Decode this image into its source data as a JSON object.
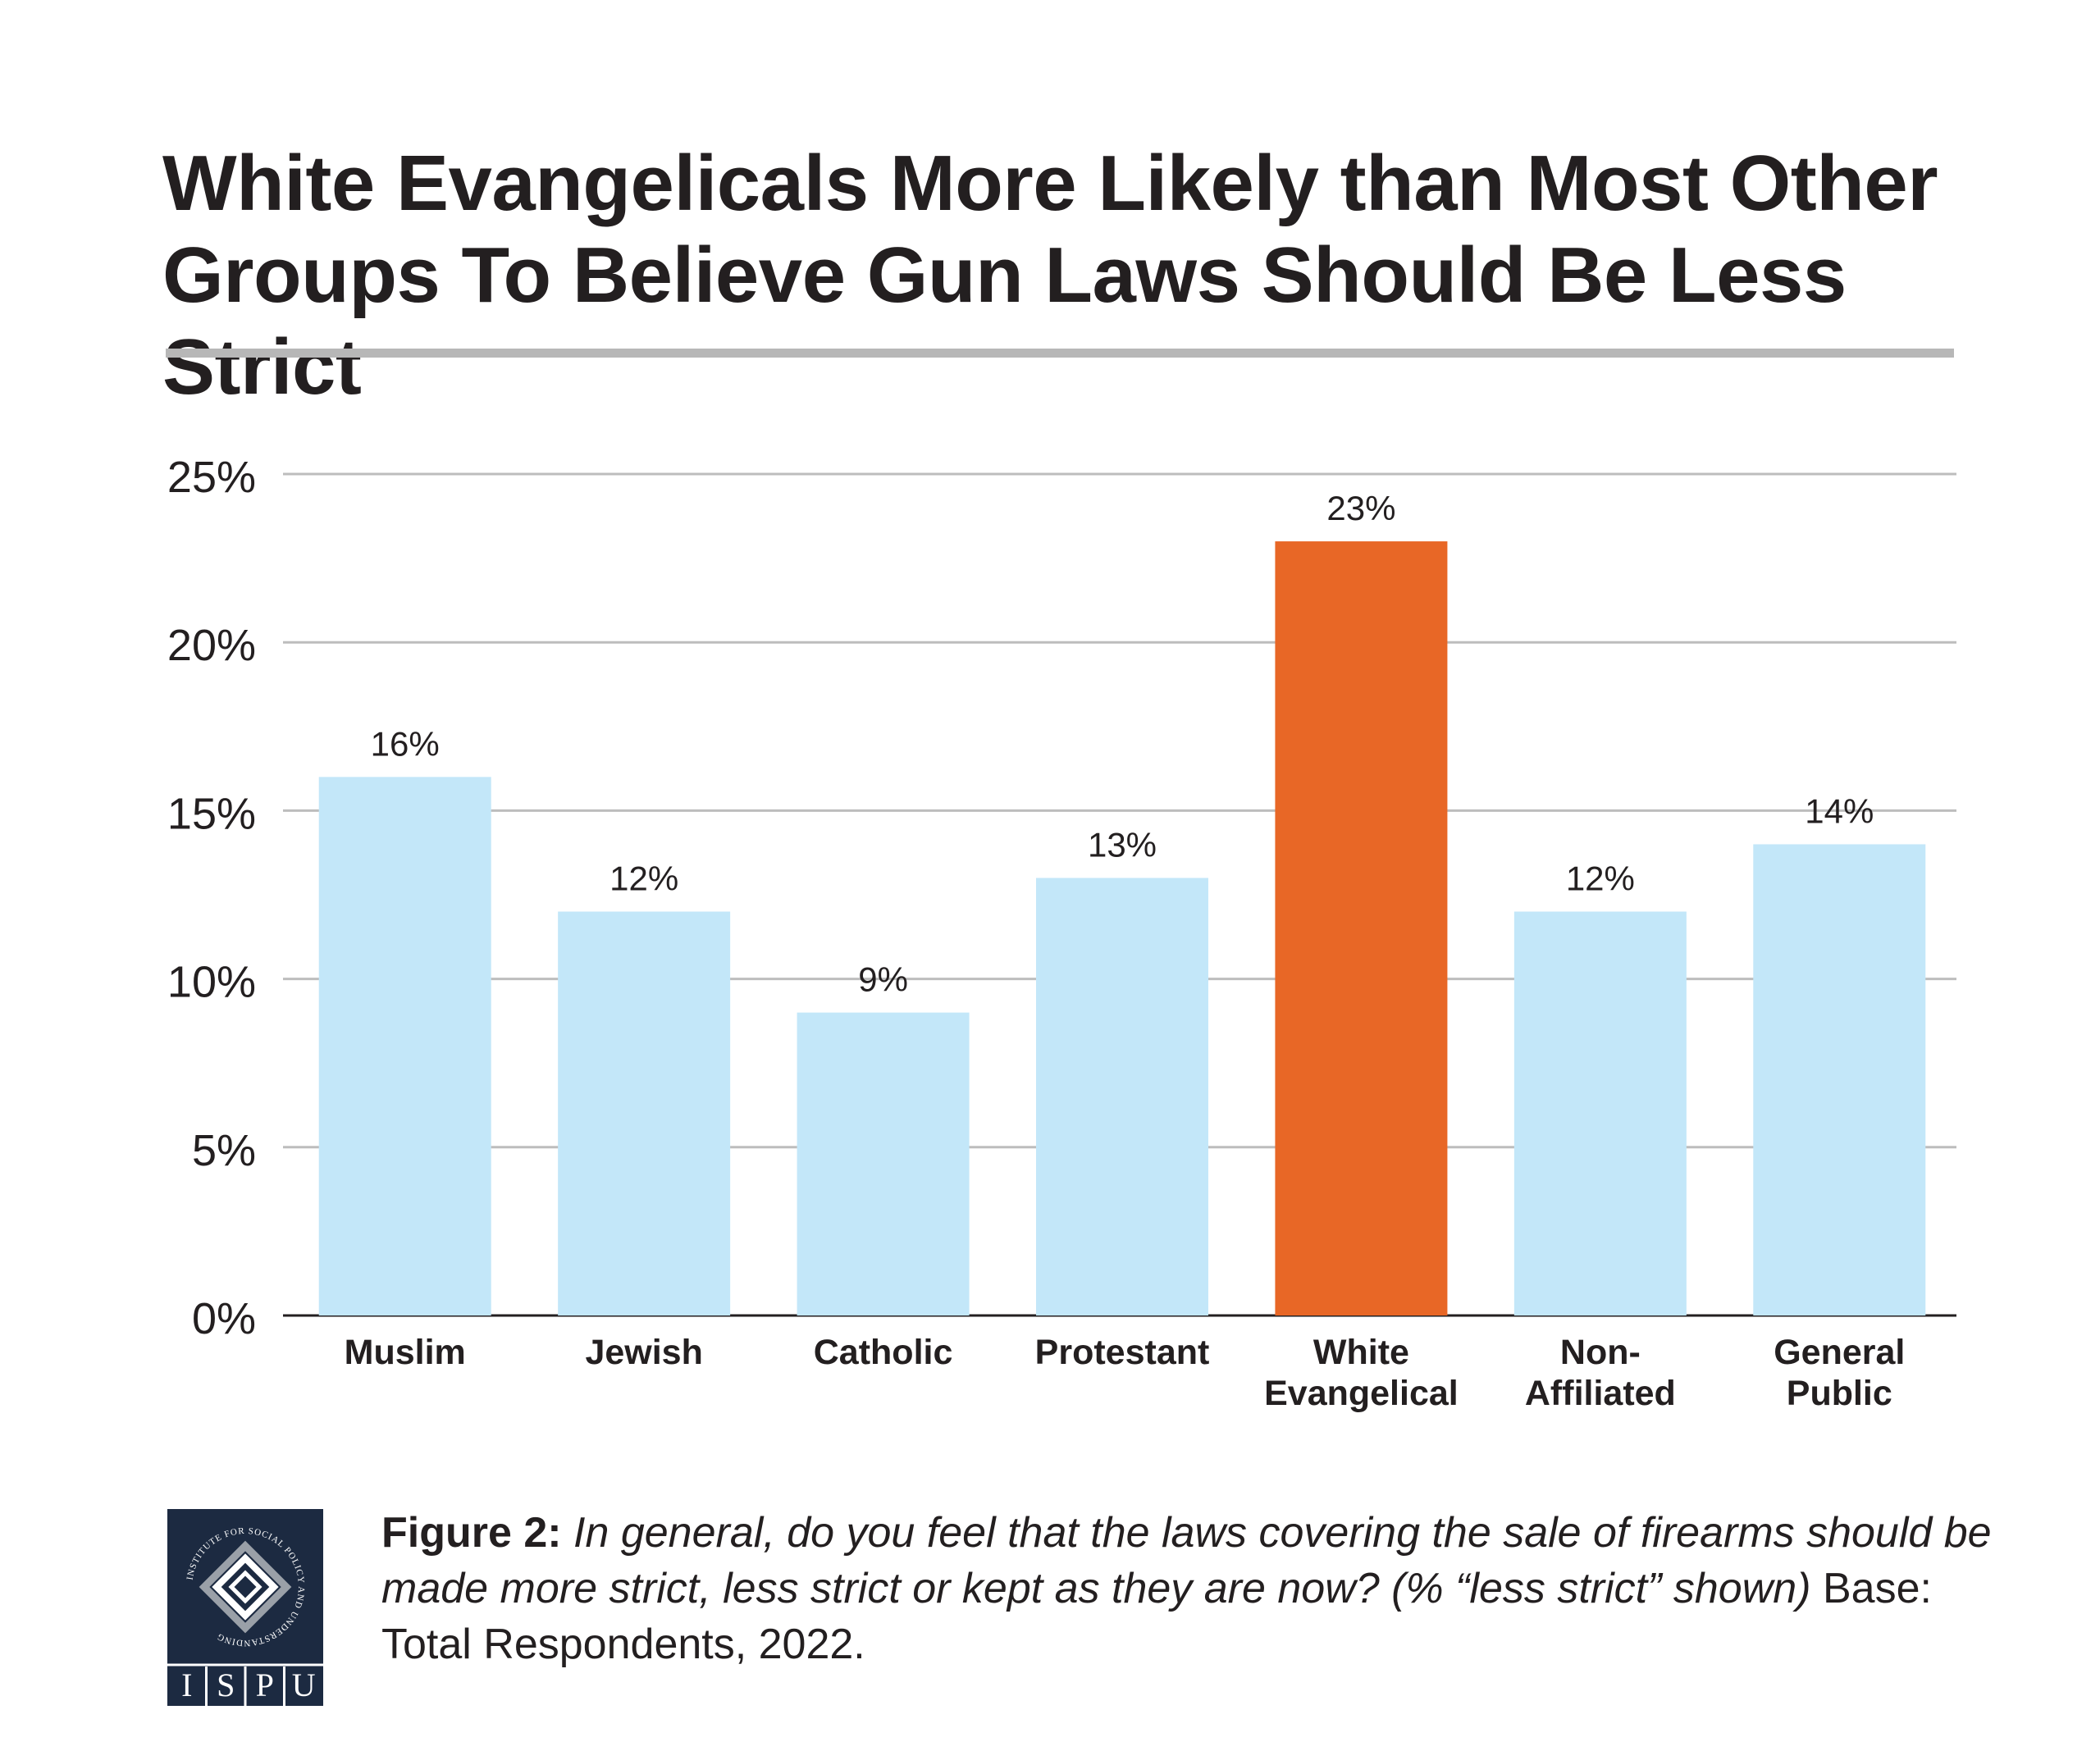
{
  "chart_data": {
    "type": "bar",
    "title_lines": [
      "White Evangelicals More Likely than Most Other",
      "Groups To Believe Gun Laws Should Be Less Strict"
    ],
    "categories": [
      [
        "Muslim"
      ],
      [
        "Jewish"
      ],
      [
        "Catholic"
      ],
      [
        "Protestant"
      ],
      [
        "White",
        "Evangelical"
      ],
      [
        "Non-",
        "Affiliated"
      ],
      [
        "General",
        "Public"
      ]
    ],
    "values": [
      16,
      12,
      9,
      13,
      23,
      12,
      14
    ],
    "data_labels": [
      "16%",
      "12%",
      "9%",
      "13%",
      "23%",
      "12%",
      "14%"
    ],
    "ylim": [
      0,
      25
    ],
    "yticks": [
      0,
      5,
      10,
      15,
      20,
      25
    ],
    "ytick_labels": [
      "0%",
      "5%",
      "10%",
      "15%",
      "20%",
      "25%"
    ],
    "grid": true,
    "colors": {
      "default": "#c3e7f9",
      "highlight": "#e86726",
      "highlight_index": 4,
      "grid": "#bdbdbd",
      "axis": "#231f20"
    }
  },
  "caption": {
    "label": "Figure 2:",
    "question": "In general, do you feel that the laws covering the sale of firearms should be made more strict, less strict or kept as they are now? (% “less strict” shown)",
    "base": "Base: Total Respondents, 2022."
  },
  "logo": {
    "arc_text": "INSTITUTE FOR SOCIAL POLICY AND UNDERSTANDING",
    "letters": [
      "I",
      "S",
      "P",
      "U"
    ],
    "colors": {
      "background": "#1c2a41",
      "mark": "#ffffff",
      "accent": "#9aa0a8"
    }
  }
}
